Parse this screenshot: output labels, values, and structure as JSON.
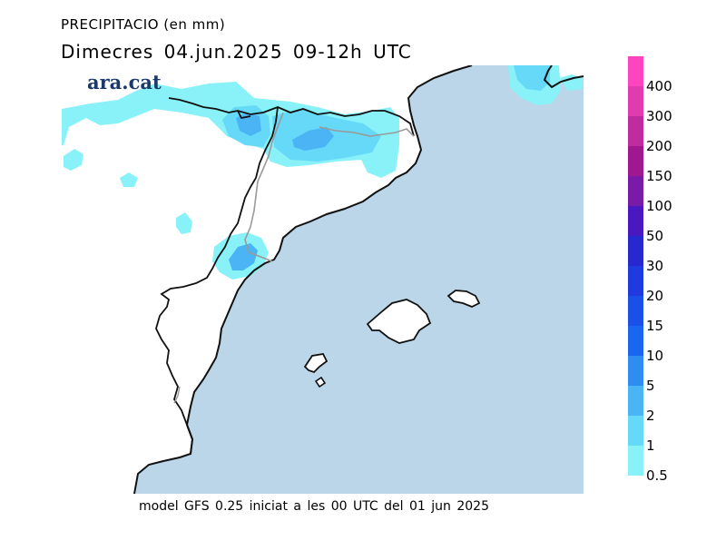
{
  "header": {
    "title": "PRECIPITACIO (en mm)",
    "date_line": "Dimecres  04.jun.2025 09-12h UTC"
  },
  "logo": {
    "text": "ara.cat"
  },
  "footer": {
    "text": "model GFS 0.25 iniciat a les 00 UTC del 01 jun 2025"
  },
  "legend": {
    "levels": [
      {
        "label": "400",
        "color": "#ff44c0"
      },
      {
        "label": "300",
        "color": "#e03cb0"
      },
      {
        "label": "200",
        "color": "#c02ca0"
      },
      {
        "label": "150",
        "color": "#a01890"
      },
      {
        "label": "100",
        "color": "#7a1aa8"
      },
      {
        "label": "50",
        "color": "#4a18c0"
      },
      {
        "label": "30",
        "color": "#2828d0"
      },
      {
        "label": "20",
        "color": "#1f3be0"
      },
      {
        "label": "15",
        "color": "#1a50e8"
      },
      {
        "label": "10",
        "color": "#1a66f0"
      },
      {
        "label": "5",
        "color": "#2f8cf0"
      },
      {
        "label": "2",
        "color": "#4ab4f4"
      },
      {
        "label": "1",
        "color": "#66d8f8"
      },
      {
        "label": "0.5",
        "color": "#88f2f8"
      }
    ]
  },
  "map": {
    "sea_color": "#bad6e8",
    "land_color": "#ffffff"
  }
}
